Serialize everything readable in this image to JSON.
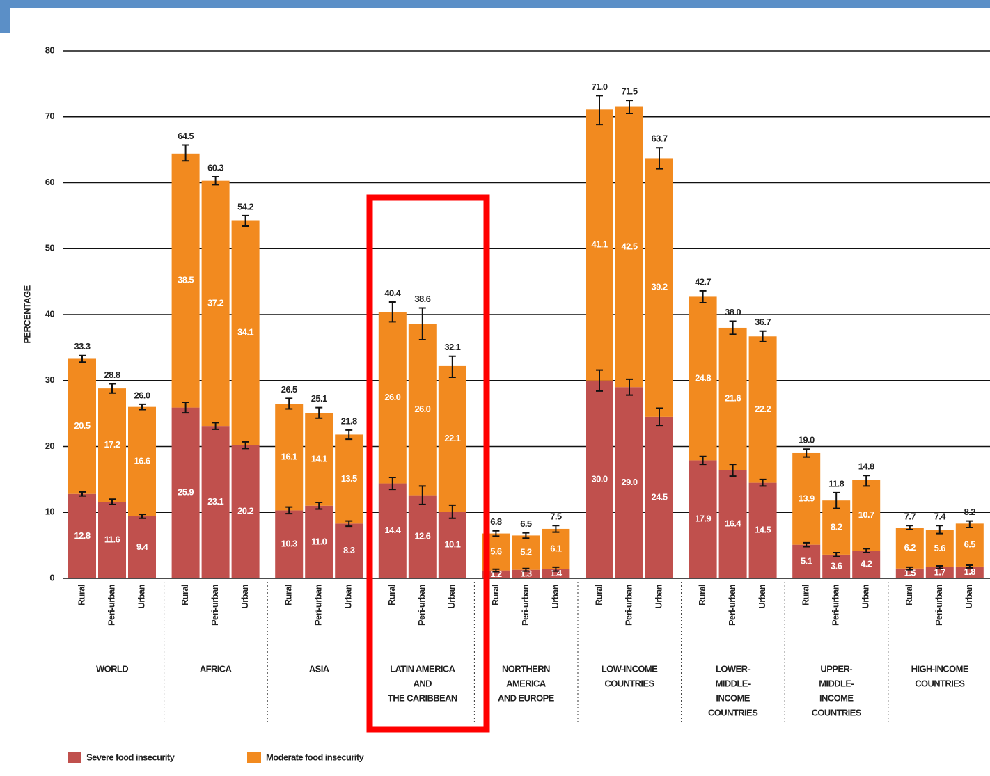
{
  "chart_data": {
    "type": "stacked-bar",
    "y_label": "PERCENTAGE",
    "categories": [
      "Rural",
      "Peri-urban",
      "Urban",
      "Rural",
      "Peri-urban",
      "Urban",
      "Rural",
      "Peri-urban",
      "Urban",
      "Rural",
      "Peri-urban",
      "Urban",
      "Rural",
      "Peri-urban",
      "Urban",
      "Rural",
      "Peri-urban",
      "Urban",
      "Rural",
      "Peri-urban",
      "Urban",
      "Rural",
      "Peri-urban",
      "Urban",
      "Rural",
      "Peri-urban",
      "Urban"
    ],
    "groups": [
      [
        "WORLD"
      ],
      [
        "AFRICA"
      ],
      [
        "ASIA"
      ],
      [
        "LATIN AMERICA",
        "AND",
        "THE CARIBBEAN"
      ],
      [
        "NORTHERN",
        "AMERICA",
        "AND EUROPE"
      ],
      [
        "LOW-INCOME",
        "COUNTRIES"
      ],
      [
        "LOWER-",
        "MIDDLE-",
        "INCOME",
        "COUNTRIES"
      ],
      [
        "UPPER-",
        "MIDDLE-",
        "INCOME",
        "COUNTRIES"
      ],
      [
        "HIGH-INCOME",
        "COUNTRIES"
      ]
    ],
    "series": [
      {
        "name": "Severe food insecurity",
        "color": "#c0504d",
        "values": [
          12.8,
          11.6,
          9.4,
          25.9,
          23.1,
          20.2,
          10.3,
          11.0,
          8.3,
          14.4,
          12.6,
          10.1,
          1.2,
          1.3,
          1.4,
          30.0,
          29.0,
          24.5,
          17.9,
          16.4,
          14.5,
          5.1,
          3.6,
          4.2,
          1.5,
          1.7,
          1.8
        ],
        "value_labels": [
          "12.8",
          "11.6",
          "9.4",
          "25.9",
          "23.1",
          "20.2",
          "10.3",
          "11.0",
          "8.3",
          "14.4",
          "12.6",
          "10.1",
          "1.2",
          "1.3",
          "1.4",
          "30.0",
          "29.0",
          "24.5",
          "17.9",
          "16.4",
          "14.5",
          "5.1",
          "3.6",
          "4.2",
          "1.5",
          "1.7",
          "1.8"
        ],
        "errors": [
          0.3,
          0.4,
          0.3,
          0.8,
          0.5,
          0.5,
          0.5,
          0.5,
          0.4,
          0.9,
          1.4,
          1.0,
          0.2,
          0.2,
          0.3,
          1.6,
          1.2,
          1.3,
          0.6,
          0.9,
          0.5,
          0.3,
          0.3,
          0.3,
          0.2,
          0.2,
          0.2
        ]
      },
      {
        "name": "Moderate food insecurity",
        "color": "#f28a1f",
        "values": [
          20.5,
          17.2,
          16.6,
          38.5,
          37.2,
          34.1,
          16.1,
          14.1,
          13.5,
          26.0,
          26.0,
          22.1,
          5.6,
          5.2,
          6.1,
          41.1,
          42.5,
          39.2,
          24.8,
          21.6,
          22.2,
          13.9,
          8.2,
          10.7,
          6.2,
          5.6,
          6.5
        ],
        "value_labels": [
          "20.5",
          "17.2",
          "16.6",
          "38.5",
          "37.2",
          "34.1",
          "16.1",
          "14.1",
          "13.5",
          "26.0",
          "26.0",
          "22.1",
          "5.6",
          "5.2",
          "6.1",
          "41.1",
          "42.5",
          "39.2",
          "24.8",
          "21.6",
          "22.2",
          "13.9",
          "8.2",
          "10.7",
          "6.2",
          "5.6",
          "6.5"
        ]
      }
    ],
    "totals": [
      33.3,
      28.8,
      26.0,
      64.5,
      60.3,
      54.2,
      26.5,
      25.1,
      21.8,
      40.4,
      38.6,
      32.1,
      6.8,
      6.5,
      7.5,
      71.0,
      71.5,
      63.7,
      42.7,
      38.0,
      36.7,
      19.0,
      11.8,
      14.8,
      7.7,
      7.4,
      8.2
    ],
    "total_labels": [
      "33.3",
      "28.8",
      "26.0",
      "64.5",
      "60.3",
      "54.2",
      "26.5",
      "25.1",
      "21.8",
      "40.4",
      "38.6",
      "32.1",
      "6.8",
      "6.5",
      "7.5",
      "71.0",
      "71.5",
      "63.7",
      "42.7",
      "38.0",
      "36.7",
      "19.0",
      "11.8",
      "14.8",
      "7.7",
      "7.4",
      "8.2"
    ],
    "total_errors": [
      0.5,
      0.7,
      0.4,
      1.2,
      0.6,
      0.8,
      0.8,
      0.8,
      0.7,
      1.5,
      2.4,
      1.6,
      0.4,
      0.4,
      0.5,
      2.2,
      1.0,
      1.6,
      0.9,
      1.0,
      0.8,
      0.6,
      1.2,
      0.8,
      0.3,
      0.6,
      0.5
    ],
    "ylim": [
      0,
      80
    ],
    "yticks": [
      0,
      10,
      20,
      30,
      40,
      50,
      60,
      70,
      80
    ],
    "grid": true,
    "legend": "bottom-left"
  }
}
